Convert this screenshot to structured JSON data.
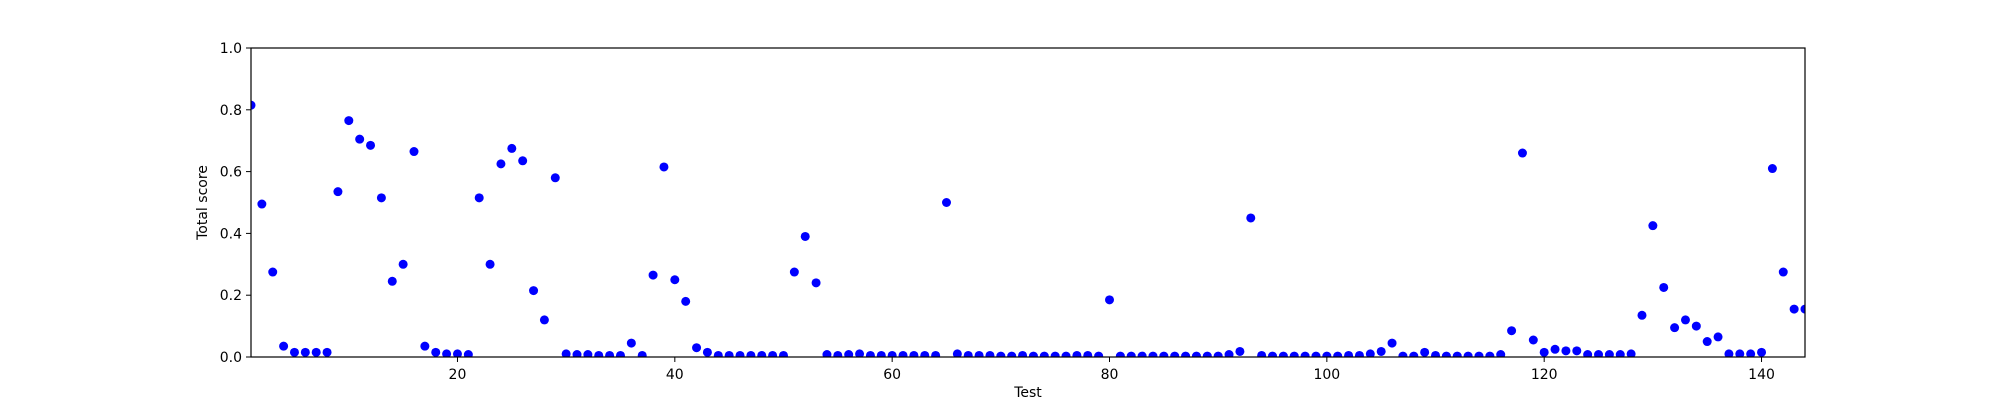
{
  "chart_data": {
    "type": "scatter",
    "title": "",
    "xlabel": "Test",
    "ylabel": "Total score",
    "xlim": [
      1,
      144
    ],
    "ylim": [
      0,
      1.0
    ],
    "xticks": [
      20,
      40,
      60,
      80,
      100,
      120,
      140
    ],
    "xtick_labels": [
      "20",
      "40",
      "60",
      "80",
      "100",
      "120",
      "140"
    ],
    "yticks": [
      0.0,
      0.2,
      0.4,
      0.6,
      0.8,
      1.0
    ],
    "ytick_labels": [
      "0.0",
      "0.2",
      "0.4",
      "0.6",
      "0.8",
      "1.0"
    ],
    "grid": false,
    "marker_color": "#0000ff",
    "series": [
      {
        "x": [
          1,
          2,
          3,
          4,
          5,
          6,
          7,
          8,
          9,
          10,
          11,
          12,
          13,
          14,
          15,
          16,
          17,
          18,
          19,
          20,
          21,
          22,
          23,
          24,
          25,
          26,
          27,
          28,
          29,
          30,
          31,
          32,
          33,
          34,
          35,
          36,
          37,
          38,
          39,
          40,
          41,
          42,
          43,
          44,
          45,
          46,
          47,
          48,
          49,
          50,
          51,
          52,
          53,
          54,
          55,
          56,
          57,
          58,
          59,
          60,
          61,
          62,
          63,
          64,
          65,
          66,
          67,
          68,
          69,
          70,
          71,
          72,
          73,
          74,
          75,
          76,
          77,
          78,
          79,
          80,
          81,
          82,
          83,
          84,
          85,
          86,
          87,
          88,
          89,
          90,
          91,
          92,
          93,
          94,
          95,
          96,
          97,
          98,
          99,
          100,
          101,
          102,
          103,
          104,
          105,
          106,
          107,
          108,
          109,
          110,
          111,
          112,
          113,
          114,
          115,
          116,
          117,
          118,
          119,
          120,
          121,
          122,
          123,
          124,
          125,
          126,
          127,
          128,
          129,
          130,
          131,
          132,
          133,
          134,
          135,
          136,
          137,
          138,
          139,
          140,
          141,
          142,
          143,
          144
        ],
        "y": [
          0.815,
          0.495,
          0.275,
          0.035,
          0.015,
          0.015,
          0.015,
          0.015,
          0.535,
          0.765,
          0.705,
          0.685,
          0.515,
          0.245,
          0.3,
          0.665,
          0.035,
          0.015,
          0.01,
          0.01,
          0.008,
          0.515,
          0.3,
          0.625,
          0.675,
          0.635,
          0.215,
          0.12,
          0.58,
          0.01,
          0.008,
          0.008,
          0.005,
          0.005,
          0.005,
          0.045,
          0.005,
          0.265,
          0.615,
          0.25,
          0.18,
          0.03,
          0.015,
          0.005,
          0.005,
          0.005,
          0.005,
          0.005,
          0.005,
          0.005,
          0.275,
          0.39,
          0.24,
          0.008,
          0.005,
          0.008,
          0.01,
          0.005,
          0.005,
          0.005,
          0.005,
          0.005,
          0.005,
          0.005,
          0.5,
          0.01,
          0.005,
          0.005,
          0.005,
          0.003,
          0.003,
          0.005,
          0.003,
          0.003,
          0.003,
          0.003,
          0.005,
          0.005,
          0.003,
          0.185,
          0.003,
          0.003,
          0.003,
          0.003,
          0.003,
          0.003,
          0.003,
          0.003,
          0.003,
          0.003,
          0.008,
          0.018,
          0.45,
          0.005,
          0.003,
          0.003,
          0.003,
          0.003,
          0.003,
          0.003,
          0.003,
          0.005,
          0.005,
          0.01,
          0.018,
          0.045,
          0.003,
          0.003,
          0.015,
          0.005,
          0.003,
          0.003,
          0.003,
          0.003,
          0.003,
          0.008,
          0.085,
          0.66,
          0.055,
          0.015,
          0.025,
          0.02,
          0.02,
          0.008,
          0.008,
          0.008,
          0.008,
          0.01,
          0.135,
          0.425,
          0.225,
          0.095,
          0.12,
          0.1,
          0.05,
          0.065,
          0.01,
          0.01,
          0.01,
          0.015,
          0.61,
          0.275,
          0.155,
          0.155
        ]
      }
    ]
  }
}
